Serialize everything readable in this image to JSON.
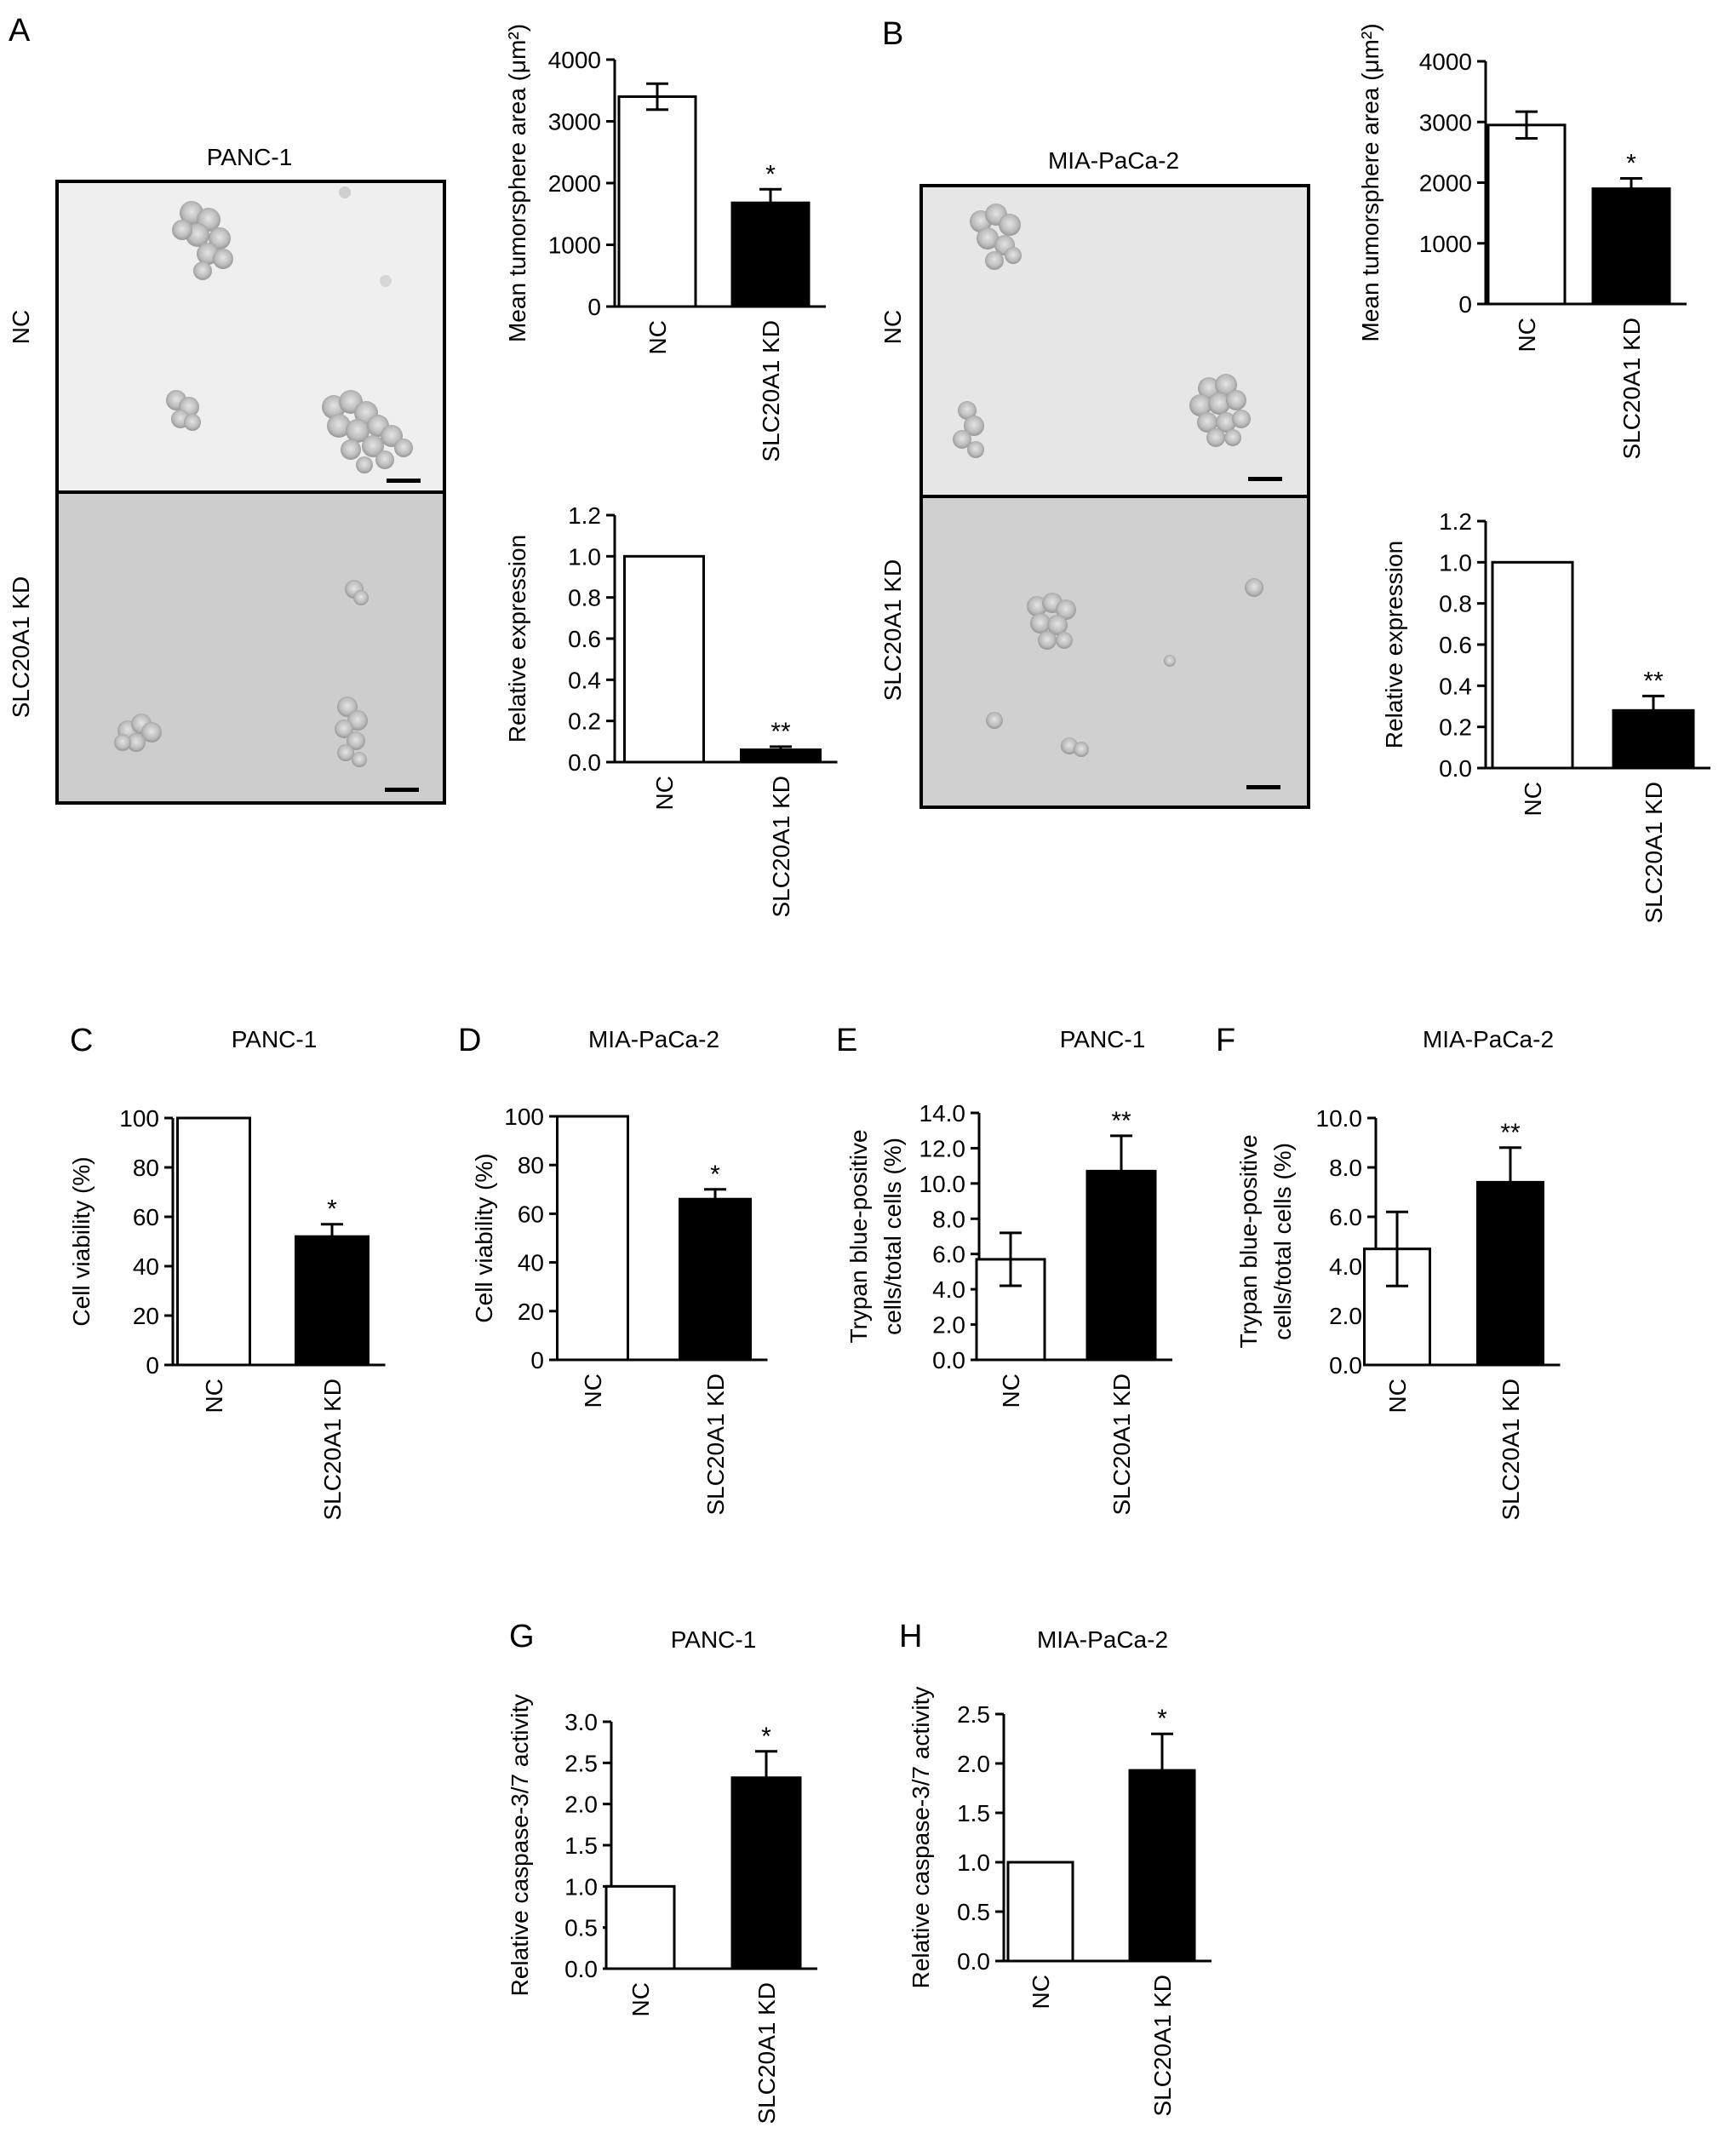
{
  "figure": {
    "panels": {
      "A": {
        "letter": "A",
        "image_title": "PANC-1",
        "row_labels": [
          "NC",
          "SLC20A1 KD"
        ]
      },
      "B": {
        "letter": "B",
        "image_title": "MIA-PaCa-2",
        "row_labels": [
          "NC",
          "SLC20A1 KD"
        ]
      }
    }
  },
  "chart_data": [
    {
      "id": "A-top",
      "panel": "A",
      "type": "bar",
      "title": "",
      "categories": [
        "NC",
        "SLC20A1 KD"
      ],
      "values": [
        3400,
        1680
      ],
      "errors": [
        210,
        220
      ],
      "fills": [
        "#ffffff",
        "#000000"
      ],
      "significance": [
        "",
        "*"
      ],
      "ylabel": "Mean tumorsphere area (μm²)",
      "ylim": [
        0,
        4000
      ],
      "ticks": [
        "0",
        "1000",
        "2000",
        "3000",
        "4000"
      ]
    },
    {
      "id": "A-bottom",
      "panel": "A",
      "type": "bar",
      "title": "",
      "categories": [
        "NC",
        "SLC20A1 KD"
      ],
      "values": [
        1.0,
        0.06
      ],
      "errors": [
        0,
        0.015
      ],
      "fills": [
        "#ffffff",
        "#000000"
      ],
      "significance": [
        "",
        "**"
      ],
      "ylabel": "Relative expression",
      "ylim": [
        0,
        1.2
      ],
      "ticks": [
        "0.0",
        "0.2",
        "0.4",
        "0.6",
        "0.8",
        "1.0",
        "1.2"
      ]
    },
    {
      "id": "B-top",
      "panel": "B",
      "type": "bar",
      "title": "",
      "categories": [
        "NC",
        "SLC20A1 KD"
      ],
      "values": [
        2950,
        1900
      ],
      "errors": [
        220,
        170
      ],
      "fills": [
        "#ffffff",
        "#000000"
      ],
      "significance": [
        "",
        "*"
      ],
      "ylabel": "Mean tumorsphere area (μm²)",
      "ylim": [
        0,
        4000
      ],
      "ticks": [
        "0",
        "1000",
        "2000",
        "3000",
        "4000"
      ]
    },
    {
      "id": "B-bottom",
      "panel": "B",
      "type": "bar",
      "title": "",
      "categories": [
        "NC",
        "SLC20A1 KD"
      ],
      "values": [
        1.0,
        0.28
      ],
      "errors": [
        0,
        0.07
      ],
      "fills": [
        "#ffffff",
        "#000000"
      ],
      "significance": [
        "",
        "**"
      ],
      "ylabel": "Relative expression",
      "ylim": [
        0,
        1.2
      ],
      "ticks": [
        "0.0",
        "0.2",
        "0.4",
        "0.6",
        "0.8",
        "1.0",
        "1.2"
      ]
    },
    {
      "id": "C",
      "panel": "C",
      "type": "bar",
      "title": "PANC-1",
      "categories": [
        "NC",
        "SLC20A1 KD"
      ],
      "values": [
        100,
        52
      ],
      "errors": [
        0,
        5
      ],
      "fills": [
        "#ffffff",
        "#000000"
      ],
      "significance": [
        "",
        "*"
      ],
      "ylabel": "Cell viability (%)",
      "ylim": [
        0,
        100
      ],
      "ticks": [
        "0",
        "20",
        "40",
        "60",
        "80",
        "100"
      ]
    },
    {
      "id": "D",
      "panel": "D",
      "type": "bar",
      "title": "MIA-PaCa-2",
      "categories": [
        "NC",
        "SLC20A1 KD"
      ],
      "values": [
        100,
        66
      ],
      "errors": [
        0,
        4
      ],
      "fills": [
        "#ffffff",
        "#000000"
      ],
      "significance": [
        "",
        "*"
      ],
      "ylabel": "Cell viability (%)",
      "ylim": [
        0,
        100
      ],
      "ticks": [
        "0",
        "20",
        "40",
        "60",
        "80",
        "100"
      ]
    },
    {
      "id": "E",
      "panel": "E",
      "type": "bar",
      "title": "PANC-1",
      "categories": [
        "NC",
        "SLC20A1 KD"
      ],
      "values": [
        5.7,
        10.7
      ],
      "errors": [
        1.5,
        2.0
      ],
      "fills": [
        "#ffffff",
        "#000000"
      ],
      "significance": [
        "",
        "**"
      ],
      "ylabel": "Trypan blue-positive\ncells/total cells (%)",
      "ylim": [
        0,
        14
      ],
      "ticks": [
        "0.0",
        "2.0",
        "4.0",
        "6.0",
        "8.0",
        "10.0",
        "12.0",
        "14.0"
      ]
    },
    {
      "id": "F",
      "panel": "F",
      "type": "bar",
      "title": "MIA-PaCa-2",
      "categories": [
        "NC",
        "SLC20A1 KD"
      ],
      "values": [
        4.7,
        7.4
      ],
      "errors": [
        1.5,
        1.4
      ],
      "fills": [
        "#ffffff",
        "#000000"
      ],
      "significance": [
        "",
        "**"
      ],
      "ylabel": "Trypan blue-positive\ncells/total cells (%)",
      "ylim": [
        0,
        10
      ],
      "ticks": [
        "0.0",
        "2.0",
        "4.0",
        "6.0",
        "8.0",
        "10.0"
      ]
    },
    {
      "id": "G",
      "panel": "G",
      "type": "bar",
      "title": "PANC-1",
      "categories": [
        "NC",
        "SLC20A1 KD"
      ],
      "values": [
        1.0,
        2.32
      ],
      "errors": [
        0,
        0.32
      ],
      "fills": [
        "#ffffff",
        "#000000"
      ],
      "significance": [
        "",
        "*"
      ],
      "ylabel": "Relative caspase-3/7 activity",
      "ylim": [
        0,
        3.0
      ],
      "ticks": [
        "0.0",
        "0.5",
        "1.0",
        "1.5",
        "2.0",
        "2.5",
        "3.0"
      ]
    },
    {
      "id": "H",
      "panel": "H",
      "type": "bar",
      "title": "MIA-PaCa-2",
      "categories": [
        "NC",
        "SLC20A1 KD"
      ],
      "values": [
        1.0,
        1.93
      ],
      "errors": [
        0,
        0.37
      ],
      "fills": [
        "#ffffff",
        "#000000"
      ],
      "significance": [
        "",
        "*"
      ],
      "ylabel": "Relative caspase-3/7 activity",
      "ylim": [
        0,
        2.5
      ],
      "ticks": [
        "0.0",
        "0.5",
        "1.0",
        "1.5",
        "2.0",
        "2.5"
      ]
    }
  ]
}
